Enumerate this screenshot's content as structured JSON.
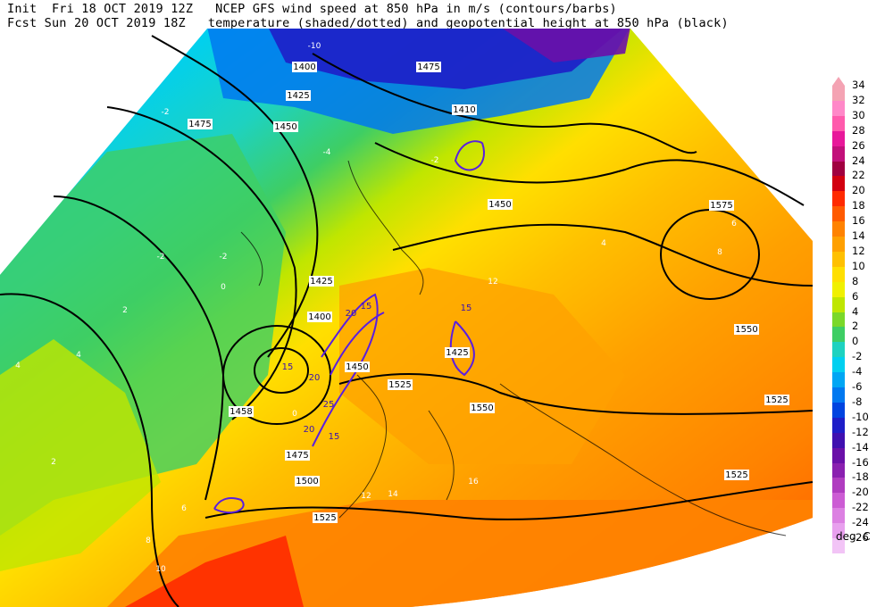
{
  "header": {
    "line1": "Init  Fri 18 OCT 2019 12Z   NCEP GFS wind speed at 850 hPa in m/s (contours/barbs)",
    "line2": "Fcst Sun 20 OCT 2019 18Z   temperature (shaded/dotted) and geopotential height at 850 hPa (black)"
  },
  "legend": {
    "units": "deg. C",
    "levels": [
      {
        "label": "34",
        "color": "#f4a3b3"
      },
      {
        "label": "32",
        "color": "#ff88c8"
      },
      {
        "label": "30",
        "color": "#ff5aac"
      },
      {
        "label": "28",
        "color": "#e8189a"
      },
      {
        "label": "26",
        "color": "#c2107a"
      },
      {
        "label": "24",
        "color": "#a00040"
      },
      {
        "label": "22",
        "color": "#d20010"
      },
      {
        "label": "20",
        "color": "#ff2a00"
      },
      {
        "label": "18",
        "color": "#ff5a00"
      },
      {
        "label": "16",
        "color": "#ff8200"
      },
      {
        "label": "14",
        "color": "#ffa000"
      },
      {
        "label": "12",
        "color": "#ffc000"
      },
      {
        "label": "10",
        "color": "#ffdf00"
      },
      {
        "label": "8",
        "color": "#f0f000"
      },
      {
        "label": "6",
        "color": "#bfe600"
      },
      {
        "label": "4",
        "color": "#7ad82a"
      },
      {
        "label": "2",
        "color": "#3ece64"
      },
      {
        "label": "0",
        "color": "#1ed2c0"
      },
      {
        "label": "-2",
        "color": "#00d0f0"
      },
      {
        "label": "-4",
        "color": "#00a6f4"
      },
      {
        "label": "-6",
        "color": "#0078f0"
      },
      {
        "label": "-8",
        "color": "#0044e0"
      },
      {
        "label": "-10",
        "color": "#1e1ec8"
      },
      {
        "label": "-12",
        "color": "#4010b0"
      },
      {
        "label": "-14",
        "color": "#6a10a8"
      },
      {
        "label": "-16",
        "color": "#8a20b0"
      },
      {
        "label": "-18",
        "color": "#b03cc0"
      },
      {
        "label": "-20",
        "color": "#cc5cd4"
      },
      {
        "label": "-22",
        "color": "#dc80e2"
      },
      {
        "label": "-24",
        "color": "#e8a0ee"
      },
      {
        "label": "-26",
        "color": "#f2c4f6"
      }
    ]
  },
  "map_labels": {
    "height": [
      "1400",
      "1425",
      "1450",
      "1475",
      "1475",
      "1410",
      "1450",
      "1575",
      "1425",
      "1400",
      "1450",
      "1425",
      "1525",
      "1550",
      "1550",
      "1458",
      "1475",
      "1500",
      "1525",
      "1525",
      "1525"
    ],
    "temperature": [
      "-10",
      "-2",
      "-2",
      "-2",
      "-4",
      "-2",
      "0",
      "2",
      "4",
      "4",
      "2",
      "0",
      "6",
      "8",
      "10",
      "12",
      "14",
      "16",
      "12",
      "8",
      "6",
      "4"
    ],
    "wind": [
      "15",
      "20",
      "15",
      "20",
      "25",
      "20",
      "15",
      "15"
    ]
  }
}
